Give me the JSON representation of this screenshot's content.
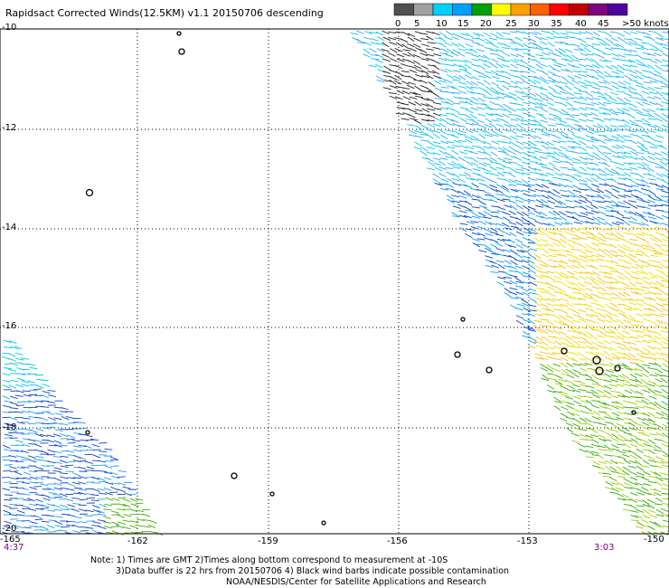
{
  "title": "Rapidsact Corrected Winds(12.5KM) v1.1 20150706 descending",
  "legend": {
    "labels": [
      "0",
      "5",
      "10",
      "15",
      "20",
      "25",
      "30",
      "35",
      "40",
      "45",
      ">50 knots"
    ],
    "colors": [
      "#505050",
      "#a0a0a0",
      "#00d0ff",
      "#00a0ff",
      "#00a000",
      "#ffff00",
      "#ffa000",
      "#ff6000",
      "#ff0000",
      "#c00000",
      "#800080",
      "#5000a0"
    ]
  },
  "axes": {
    "x_ticks": [
      "-165",
      "-162",
      "-159",
      "-156",
      "-153",
      "-150"
    ],
    "y_ticks": [
      "-10",
      "-12",
      "-14",
      "-16",
      "-18",
      "-20"
    ]
  },
  "times": {
    "left": "4:37",
    "right": "3:03"
  },
  "notes": [
    "Note: 1) Times are GMT 2)Times along bottom correspond to measurement at -10S",
    "3)Data buffer is 22 hrs from 20150706 4) Black wind barbs indicate possible contamination",
    "NOAA/NESDIS/Center for Satellite Applications and Research"
  ]
}
